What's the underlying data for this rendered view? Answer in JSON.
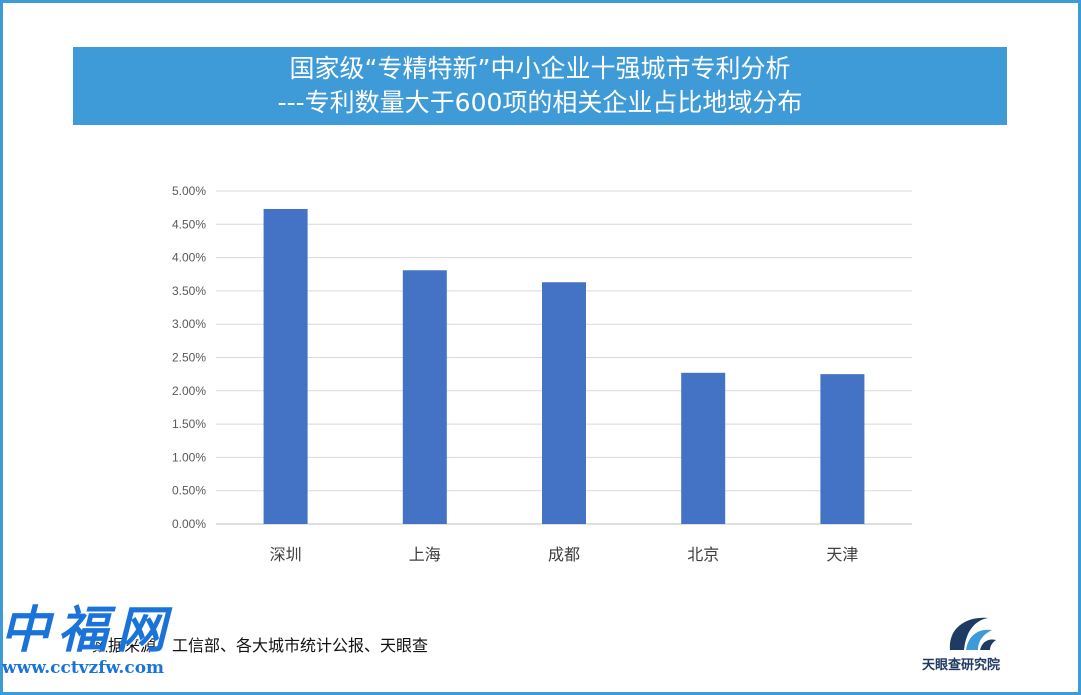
{
  "header": {
    "title_line1": "国家级“专精特新”中小企业十强城市专利分析",
    "title_line2": "---专利数量大于600项的相关企业占比地域分布",
    "banner_color": "#3f9ad8"
  },
  "chart_data": {
    "type": "bar",
    "title": "国家级“专精特新”中小企业十强城市专利分析 ---专利数量大于600项的相关企业占比地域分布",
    "categories": [
      "深圳",
      "上海",
      "成都",
      "北京",
      "天津"
    ],
    "values": [
      0.0473,
      0.0381,
      0.0363,
      0.0227,
      0.0225
    ],
    "ylim": [
      0,
      0.05
    ],
    "yticks": [
      "0.00%",
      "0.50%",
      "1.00%",
      "1.50%",
      "2.00%",
      "2.50%",
      "3.00%",
      "3.50%",
      "4.00%",
      "4.50%",
      "5.00%"
    ],
    "xlabel": "",
    "ylabel": "",
    "grid": true,
    "bar_color": "#4472c4"
  },
  "footer": {
    "source": "数据来源：工信部、各大城市统计公报、天眼查",
    "logo_text": "天眼查研究院"
  },
  "watermark": {
    "cn_text": "中福网",
    "url": "www.cctvzfw.com"
  }
}
